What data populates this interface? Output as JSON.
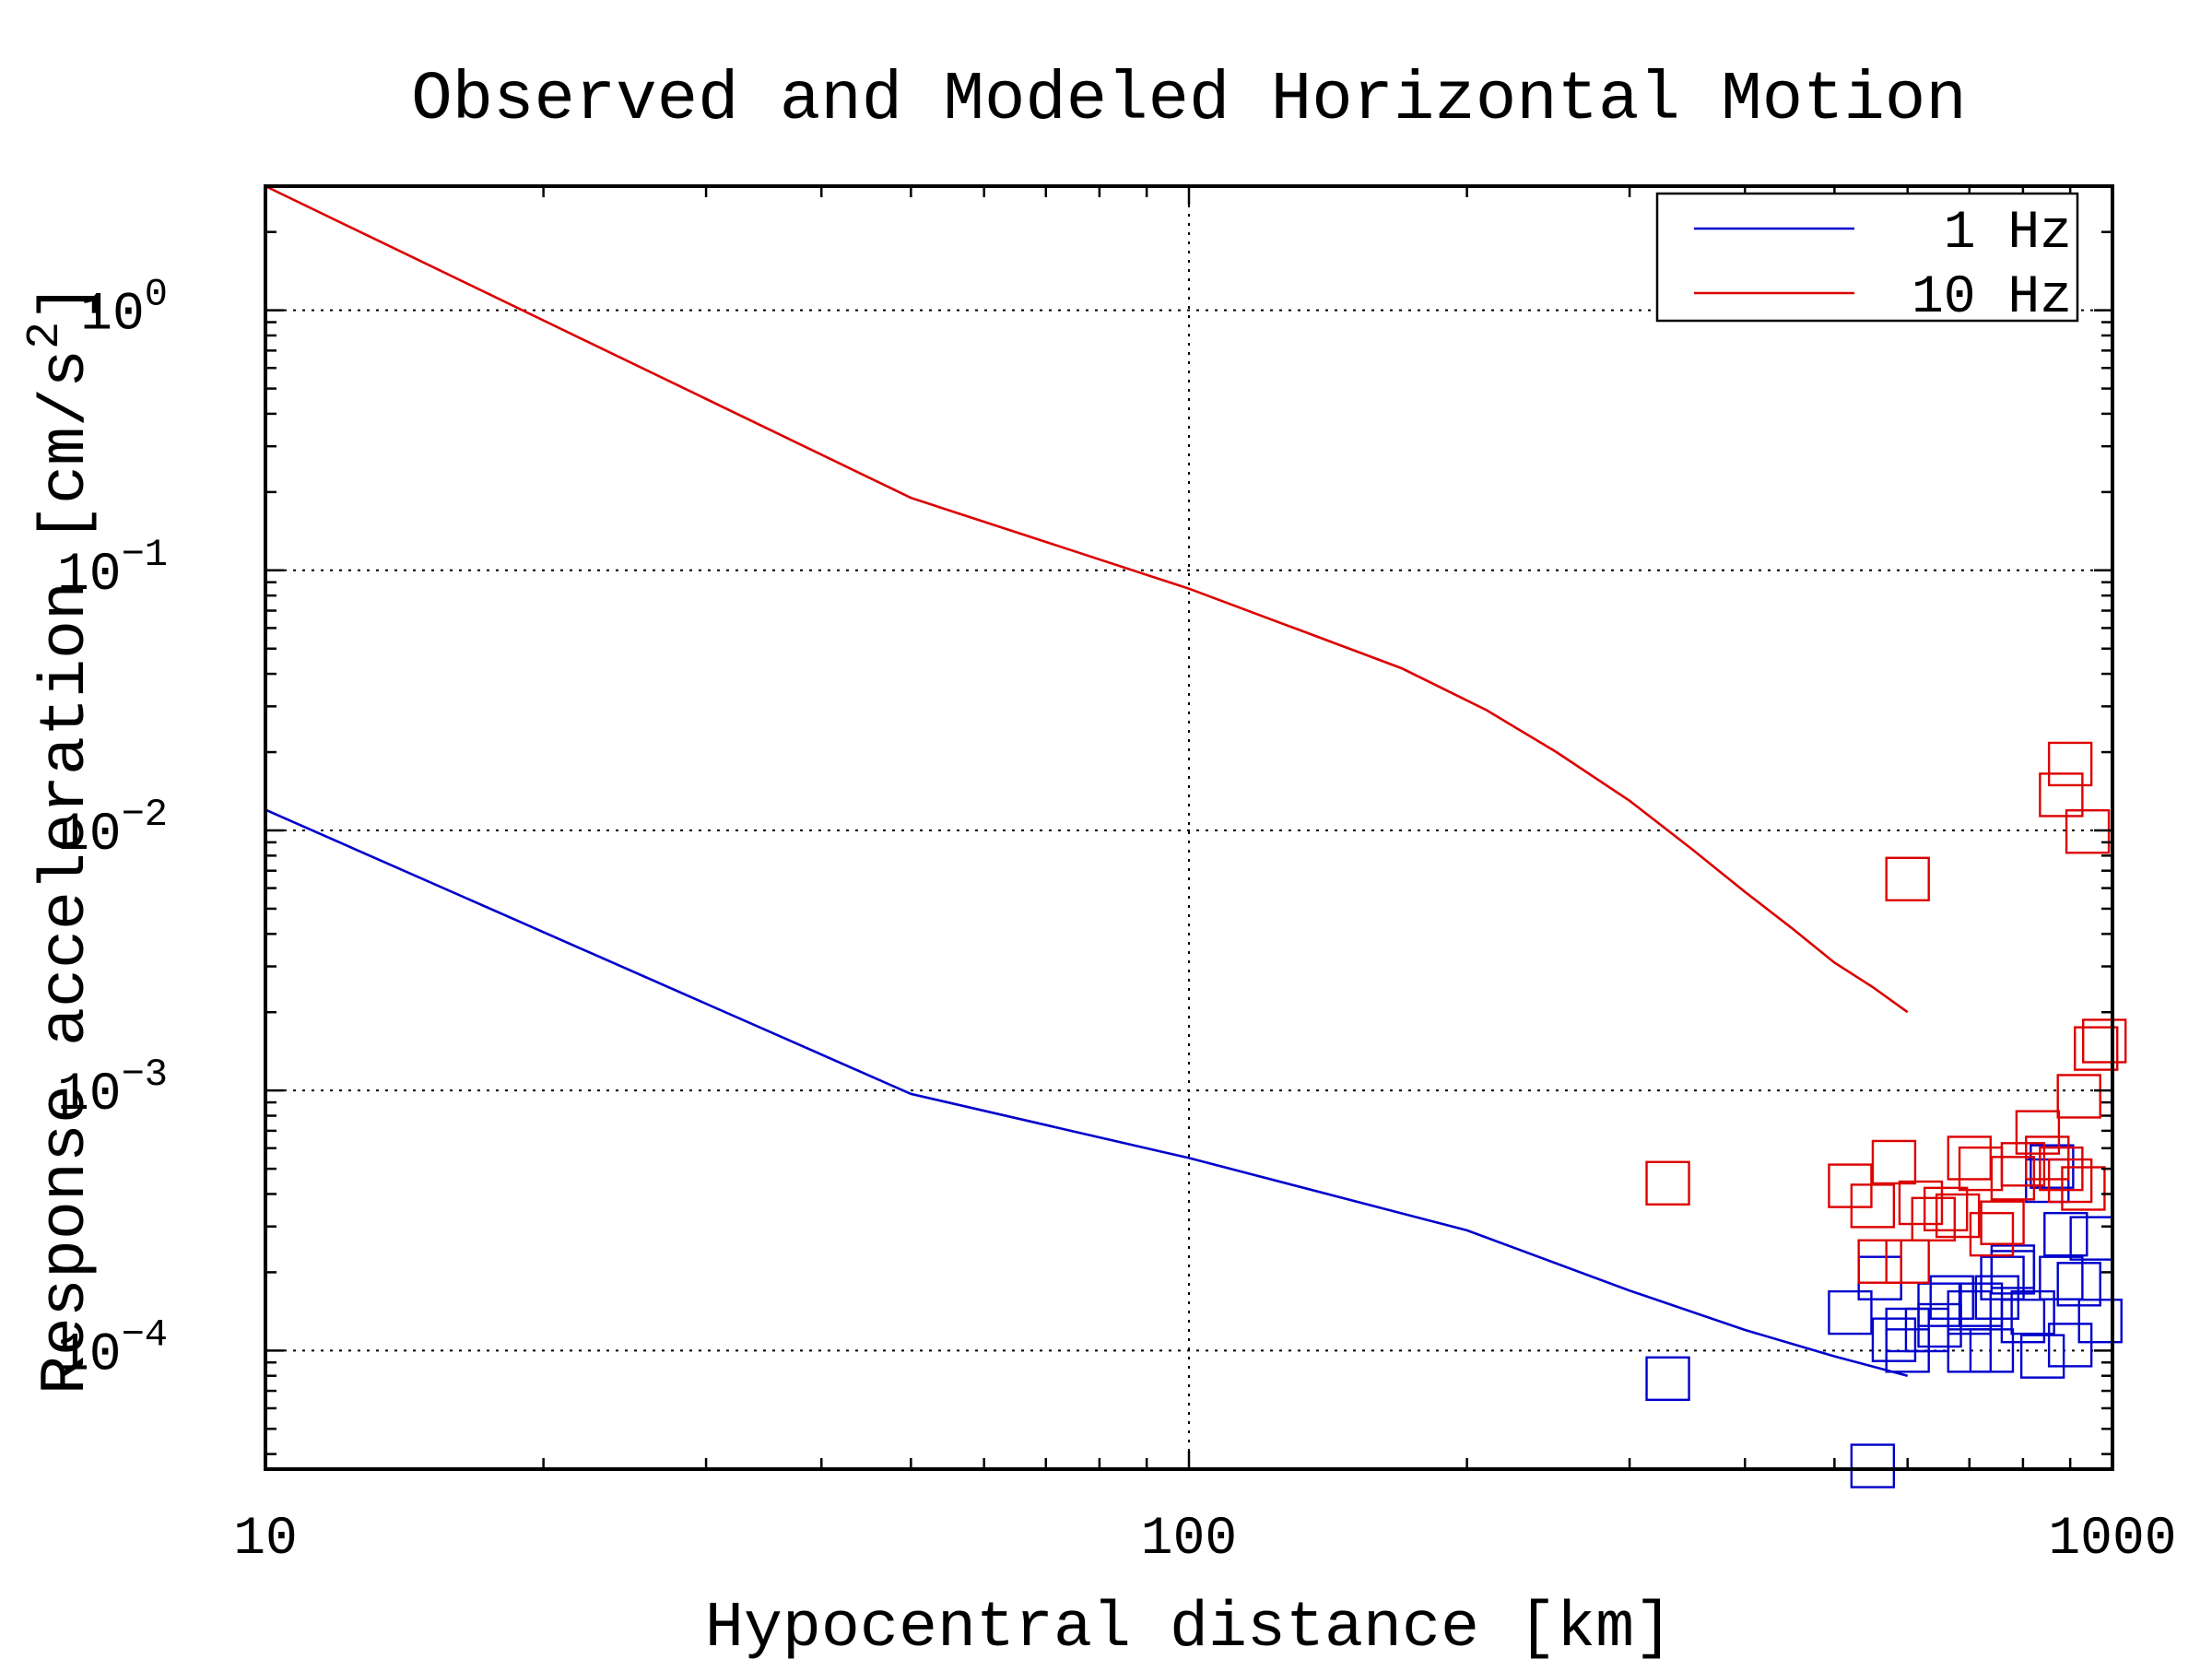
{
  "chart_data": {
    "type": "line",
    "title": "Observed and Modeled Horizontal Motion",
    "xlabel": "Hypocentral distance [km]",
    "ylabel": "Response acceleration [cm/s^2]",
    "xscale": "log",
    "yscale": "log",
    "xlim": [
      10,
      1000
    ],
    "ylim": [
      3.5e-05,
      3.0
    ],
    "xticks": [
      {
        "value": 10,
        "label": "10"
      },
      {
        "value": 100,
        "label": "100"
      },
      {
        "value": 1000,
        "label": "1000"
      }
    ],
    "yticks": [
      {
        "value": 1,
        "base": "10",
        "exp": "0"
      },
      {
        "value": 0.1,
        "base": "10",
        "exp": "−1"
      },
      {
        "value": 0.01,
        "base": "10",
        "exp": "−2"
      },
      {
        "value": 0.001,
        "base": "10",
        "exp": "−3"
      },
      {
        "value": 0.0001,
        "base": "10",
        "exp": "−4"
      }
    ],
    "grid": true,
    "legend_position": "top-right",
    "series": [
      {
        "name": "1 Hz",
        "color": "#0000cc",
        "x": [
          10,
          50,
          100,
          200,
          300,
          400,
          500,
          600
        ],
        "y": [
          0.012,
          0.00097,
          0.00055,
          0.00029,
          0.00017,
          0.00012,
          9.5e-05,
          8e-05
        ]
      },
      {
        "name": "10 Hz",
        "color": "#dd0000",
        "x": [
          10,
          50,
          100,
          130,
          170,
          210,
          250,
          300,
          350,
          400,
          450,
          500,
          550,
          600
        ],
        "y": [
          3.0,
          0.19,
          0.085,
          0.06,
          0.042,
          0.029,
          0.02,
          0.013,
          0.0085,
          0.0058,
          0.0042,
          0.0031,
          0.0025,
          0.002
        ]
      }
    ],
    "observed": [
      {
        "series": "1 Hz",
        "color": "#0000cc",
        "marker": "square",
        "x": [
          330,
          550,
          560,
          520,
          580,
          600,
          630,
          650,
          670,
          700,
          720,
          740,
          750,
          760,
          780,
          800,
          820,
          840,
          860,
          880,
          890,
          900,
          920,
          950,
          970,
          600,
          700,
          780,
          850,
          650
        ],
        "y": [
          7.8e-05,
          3.6e-05,
          0.00019,
          0.00014,
          0.00011,
          0.0001,
          0.00012,
          0.00015,
          0.00016,
          0.00014,
          0.00015,
          0.0001,
          0.00016,
          0.00019,
          0.00021,
          0.00013,
          0.00014,
          9.5e-05,
          0.00051,
          0.00019,
          0.00028,
          0.000105,
          0.00018,
          0.00027,
          0.00013,
          0.00012,
          0.0001,
          0.0002,
          0.00045,
          0.000125
        ]
      },
      {
        "series": "10 Hz",
        "color": "#dd0000",
        "marker": "square",
        "x": [
          330,
          520,
          550,
          560,
          580,
          600,
          620,
          640,
          660,
          680,
          700,
          720,
          740,
          760,
          780,
          800,
          830,
          850,
          880,
          900,
          920,
          940,
          960,
          980,
          880,
          900,
          930,
          600
        ],
        "y": [
          0.00044,
          0.00043,
          0.00036,
          0.00022,
          0.00053,
          0.0065,
          0.00037,
          0.00032,
          0.00035,
          0.00033,
          0.00055,
          0.0005,
          0.00028,
          0.00031,
          0.00046,
          0.00052,
          0.00069,
          0.00055,
          0.0137,
          0.018,
          0.00095,
          0.0099,
          0.00145,
          0.00155,
          0.0005,
          0.00045,
          0.00042,
          0.00022
        ]
      }
    ]
  }
}
